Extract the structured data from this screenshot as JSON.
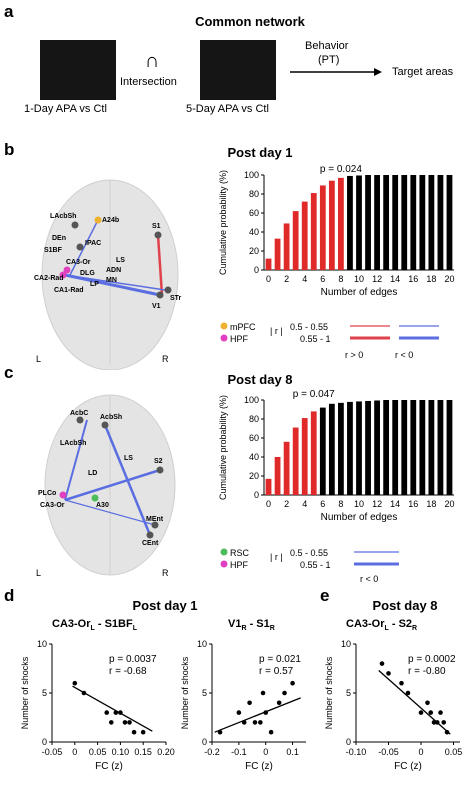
{
  "panel_a": {
    "letter": "a",
    "title": "Common network",
    "matrix1_label": "1-Day APA vs Ctl",
    "matrix2_label": "5-Day APA vs Ctl",
    "intersection_symbol": "∩",
    "intersection_label": "Intersection",
    "behavior_label": "Behavior",
    "behavior_sub": "(PT)",
    "target_label": "Target areas"
  },
  "panel_b": {
    "letter": "b",
    "title": "Post day 1",
    "brain_nodes": [
      "LAcbSh",
      "A24b",
      "S1",
      "DEn",
      "IPAC",
      "LS",
      "S1BF",
      "ADN",
      "CA3-Or",
      "DLG",
      "MN",
      "CA2-Rad",
      "LP",
      "CA1-Rad",
      "V1",
      "STr"
    ],
    "brain_L": "L",
    "brain_R": "R",
    "legend": {
      "mpfc": "mPFC",
      "hpf": "HPF",
      "r_label": "| r |",
      "range1": "0.5 - 0.55",
      "range2": "0.55 - 1",
      "pos": "r > 0",
      "neg": "r < 0"
    },
    "chart_data": {
      "type": "bar",
      "title": "Post day 1",
      "xlabel": "Number of edges",
      "ylabel": "Cumulative probability (%)",
      "annotation": "p = 0.024",
      "x": [
        0,
        1,
        2,
        3,
        4,
        5,
        6,
        7,
        8,
        9,
        10,
        11,
        12,
        13,
        14,
        15,
        16,
        17,
        18,
        19,
        20
      ],
      "values": [
        12,
        33,
        49,
        62,
        72,
        81,
        89,
        94,
        97,
        99,
        99.5,
        100,
        100,
        100,
        100,
        100,
        100,
        100,
        100,
        100,
        100
      ],
      "red_upto": 8,
      "ylim": [
        0,
        100
      ],
      "yticks": [
        0,
        20,
        40,
        60,
        80,
        100
      ],
      "xticks": [
        0,
        2,
        4,
        6,
        8,
        10,
        12,
        14,
        16,
        18,
        20
      ]
    }
  },
  "panel_c": {
    "letter": "c",
    "title": "Post day 8",
    "brain_nodes": [
      "AcbC",
      "AcbSh",
      "LAcbSh",
      "LS",
      "S2",
      "LD",
      "PLCo",
      "CA3-Or",
      "A30",
      "MEnt",
      "CEnt"
    ],
    "brain_L": "L",
    "brain_R": "R",
    "legend": {
      "rsc": "RSC",
      "hpf": "HPF",
      "r_label": "| r |",
      "range1": "0.5 - 0.55",
      "range2": "0.55 - 1",
      "neg": "r < 0"
    },
    "chart_data": {
      "type": "bar",
      "title": "Post day 8",
      "xlabel": "Number of edges",
      "ylabel": "Cumulative probability (%)",
      "annotation": "p = 0.047",
      "x": [
        0,
        1,
        2,
        3,
        4,
        5,
        6,
        7,
        8,
        9,
        10,
        11,
        12,
        13,
        14,
        15,
        16,
        17,
        18,
        19,
        20
      ],
      "values": [
        17,
        40,
        56,
        71,
        81,
        88,
        92,
        96,
        97,
        98,
        98.5,
        99,
        99.5,
        100,
        100,
        100,
        100,
        100,
        100,
        100,
        100
      ],
      "red_upto": 5,
      "ylim": [
        0,
        100
      ],
      "yticks": [
        0,
        20,
        40,
        60,
        80,
        100
      ],
      "xticks": [
        0,
        2,
        4,
        6,
        8,
        10,
        12,
        14,
        16,
        18,
        20
      ]
    }
  },
  "panel_d": {
    "letter": "d",
    "title": "Post day 1",
    "plots": [
      {
        "title": "CA3-Or",
        "title_sub": "L",
        "title_rest": " - S1BF",
        "title_sub2": "L",
        "p_text": "p = 0.0037",
        "r_text": "r = -0.68",
        "ylabel": "Number of shocks",
        "xlabel": "FC (z)",
        "xticks": [
          "-0.05",
          "0",
          "0.05",
          "0.10",
          "0.15",
          "0.20"
        ],
        "chart_data": {
          "type": "scatter",
          "xlim": [
            -0.05,
            0.2
          ],
          "ylim": [
            0,
            10
          ],
          "x": [
            0.0,
            0.02,
            0.07,
            0.08,
            0.09,
            0.1,
            0.11,
            0.12,
            0.13,
            0.15
          ],
          "y": [
            6,
            5,
            3,
            2,
            3,
            3,
            2,
            2,
            1,
            1
          ],
          "fit": [
            [
              -0.005,
              5.7
            ],
            [
              0.17,
              1.1
            ]
          ]
        }
      },
      {
        "title": "V1",
        "title_sub": "R",
        "title_rest": " - S1",
        "title_sub2": "R",
        "p_text": "p = 0.021",
        "r_text": "r = 0.57",
        "ylabel": "Number of shocks",
        "xlabel": "FC (z)",
        "xticks": [
          "-0.2",
          "-0.1",
          "0",
          "0.1"
        ],
        "chart_data": {
          "type": "scatter",
          "xlim": [
            -0.2,
            0.15
          ],
          "ylim": [
            0,
            10
          ],
          "x": [
            -0.17,
            -0.1,
            -0.08,
            -0.06,
            -0.04,
            -0.02,
            -0.01,
            0.0,
            0.02,
            0.05,
            0.07,
            0.1
          ],
          "y": [
            1,
            3,
            2,
            4,
            2,
            2,
            5,
            3,
            1,
            4,
            5,
            6
          ],
          "fit": [
            [
              -0.19,
              1.0
            ],
            [
              0.13,
              4.5
            ]
          ]
        }
      }
    ]
  },
  "panel_e": {
    "letter": "e",
    "title": "Post day 8",
    "plot": {
      "title": "CA3-Or",
      "title_sub": "L",
      "title_rest": " - S2",
      "title_sub2": "R",
      "p_text": "p = 0.0002",
      "r_text": "r = -0.80",
      "ylabel": "Number of shocks",
      "xlabel": "FC (z)",
      "xticks": [
        "-0.10",
        "-0.05",
        "0",
        "0.05"
      ],
      "chart_data": {
        "type": "scatter",
        "xlim": [
          -0.1,
          0.06
        ],
        "ylim": [
          0,
          10
        ],
        "x": [
          -0.06,
          -0.05,
          -0.03,
          -0.02,
          0.0,
          0.01,
          0.015,
          0.02,
          0.025,
          0.03,
          0.035,
          0.04
        ],
        "y": [
          8,
          7,
          6,
          5,
          3,
          4,
          3,
          2,
          2,
          3,
          2,
          1
        ],
        "fit": [
          [
            -0.065,
            7.3
          ],
          [
            0.045,
            0.8
          ]
        ]
      }
    }
  }
}
